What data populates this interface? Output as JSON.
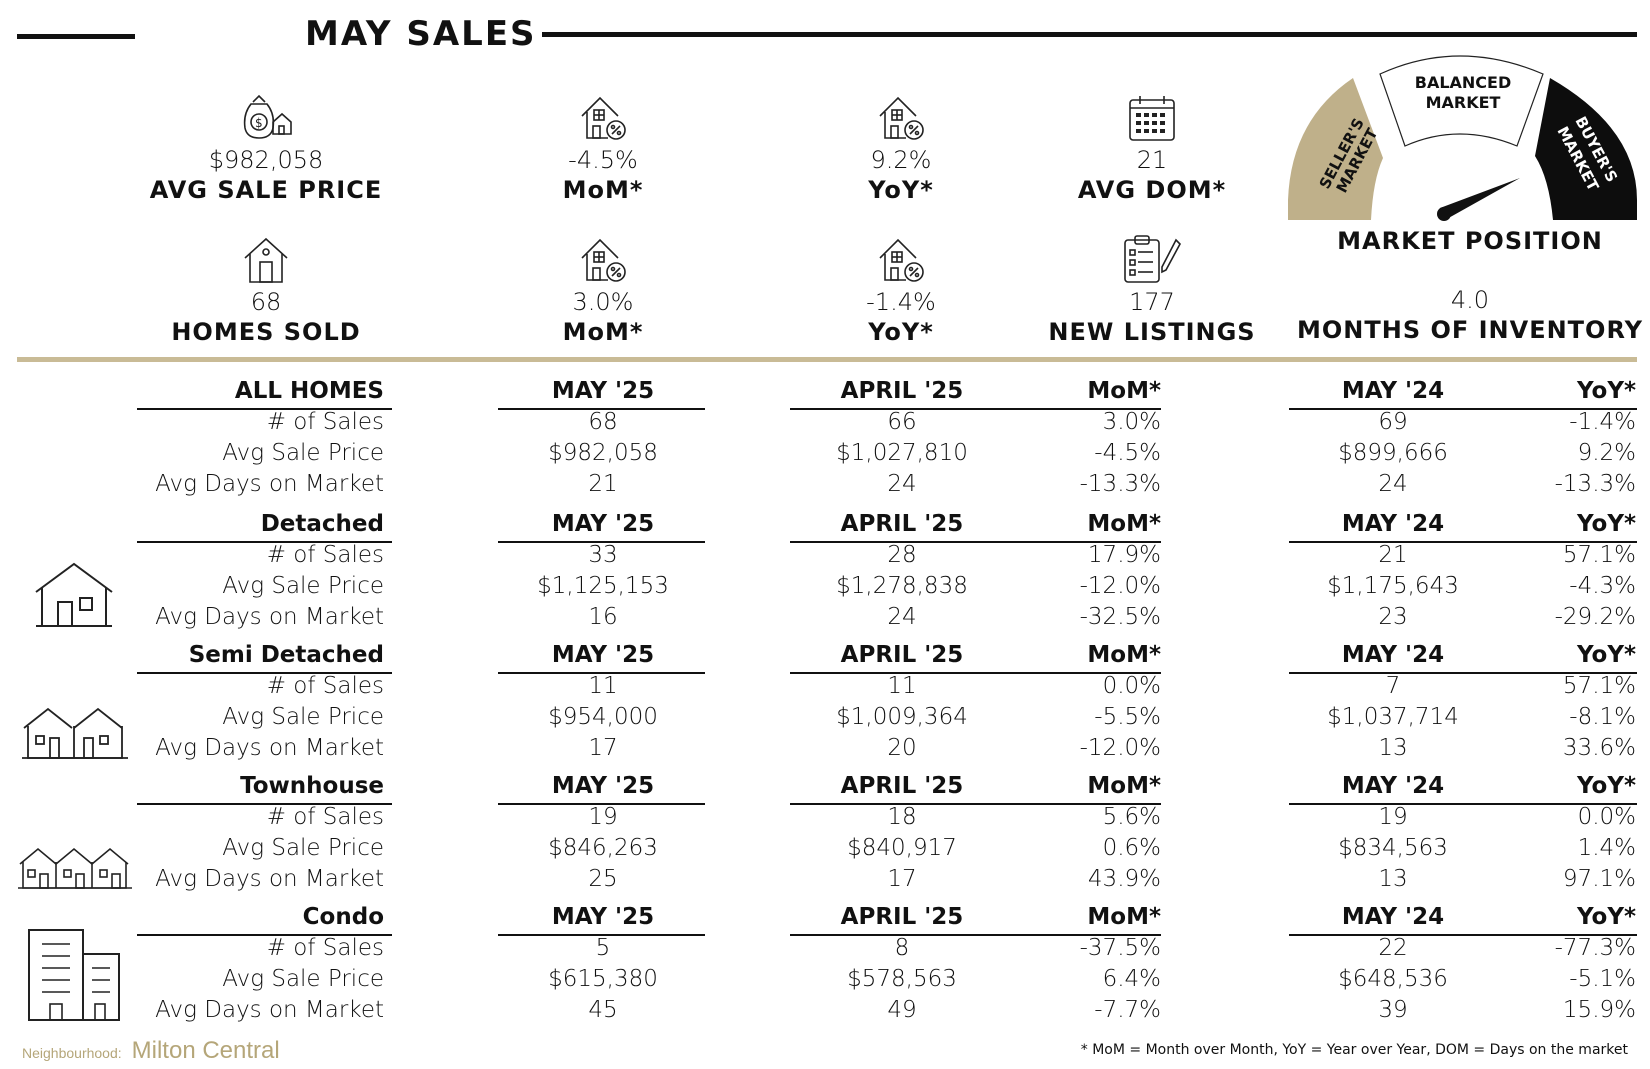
{
  "title": "MAY SALES",
  "stats_top": [
    {
      "icon": "money-bag-house-icon",
      "value": "$982,058",
      "label": "AVG SALE PRICE"
    },
    {
      "icon": "house-percent-icon",
      "value": "-4.5%",
      "label": "MoM*"
    },
    {
      "icon": "house-percent-icon",
      "value": "9.2%",
      "label": "YoY*"
    },
    {
      "icon": "calendar-icon",
      "value": "21",
      "label": "AVG DOM*"
    }
  ],
  "stats_bottom": [
    {
      "icon": "house-icon",
      "value": "68",
      "label": "HOMES SOLD"
    },
    {
      "icon": "house-percent-icon",
      "value": "3.0%",
      "label": "MoM*"
    },
    {
      "icon": "house-percent-icon",
      "value": "-1.4%",
      "label": "YoY*"
    },
    {
      "icon": "clipboard-pencil-icon",
      "value": "177",
      "label": "NEW LISTINGS"
    }
  ],
  "gauge": {
    "seller": "SELLER'S\nMARKET",
    "balanced_1": "BALANCED",
    "balanced_2": "MARKET",
    "buyer": "BUYER'S\nMARKET",
    "label": "MARKET POSITION",
    "value": "4.0",
    "value_label": "MONTHS OF INVENTORY",
    "gold": "#bfb08a",
    "dark": "#0d0d0d"
  },
  "columns": {
    "current": "MAY '25",
    "prev": "APRIL '25",
    "mom": "MoM*",
    "last_year": "MAY '24",
    "yoy": "YoY*"
  },
  "sections": [
    {
      "name": "ALL HOMES",
      "rows": [
        {
          "label": "# of Sales",
          "cur": "68",
          "prev": "66",
          "mom": "3.0%",
          "ly": "69",
          "yoy": "-1.4%"
        },
        {
          "label": "Avg Sale Price",
          "cur": "$982,058",
          "prev": "$1,027,810",
          "mom": "-4.5%",
          "ly": "$899,666",
          "yoy": "9.2%"
        },
        {
          "label": "Avg Days on Market",
          "cur": "21",
          "prev": "24",
          "mom": "-13.3%",
          "ly": "24",
          "yoy": "-13.3%"
        }
      ]
    },
    {
      "name": "Detached",
      "rows": [
        {
          "label": "# of Sales",
          "cur": "33",
          "prev": "28",
          "mom": "17.9%",
          "ly": "21",
          "yoy": "57.1%"
        },
        {
          "label": "Avg Sale Price",
          "cur": "$1,125,153",
          "prev": "$1,278,838",
          "mom": "-12.0%",
          "ly": "$1,175,643",
          "yoy": "-4.3%"
        },
        {
          "label": "Avg Days on Market",
          "cur": "16",
          "prev": "24",
          "mom": "-32.5%",
          "ly": "23",
          "yoy": "-29.2%"
        }
      ]
    },
    {
      "name": "Semi Detached",
      "rows": [
        {
          "label": "# of Sales",
          "cur": "11",
          "prev": "11",
          "mom": "0.0%",
          "ly": "7",
          "yoy": "57.1%"
        },
        {
          "label": "Avg Sale Price",
          "cur": "$954,000",
          "prev": "$1,009,364",
          "mom": "-5.5%",
          "ly": "$1,037,714",
          "yoy": "-8.1%"
        },
        {
          "label": "Avg Days on Market",
          "cur": "17",
          "prev": "20",
          "mom": "-12.0%",
          "ly": "13",
          "yoy": "33.6%"
        }
      ]
    },
    {
      "name": "Townhouse",
      "rows": [
        {
          "label": "# of Sales",
          "cur": "19",
          "prev": "18",
          "mom": "5.6%",
          "ly": "19",
          "yoy": "0.0%"
        },
        {
          "label": "Avg Sale Price",
          "cur": "$846,263",
          "prev": "$840,917",
          "mom": "0.6%",
          "ly": "$834,563",
          "yoy": "1.4%"
        },
        {
          "label": "Avg Days on Market",
          "cur": "25",
          "prev": "17",
          "mom": "43.9%",
          "ly": "13",
          "yoy": "97.1%"
        }
      ]
    },
    {
      "name": "Condo",
      "rows": [
        {
          "label": "# of Sales",
          "cur": "5",
          "prev": "8",
          "mom": "-37.5%",
          "ly": "22",
          "yoy": "-77.3%"
        },
        {
          "label": "Avg Sale Price",
          "cur": "$615,380",
          "prev": "$578,563",
          "mom": "6.4%",
          "ly": "$648,536",
          "yoy": "-5.1%"
        },
        {
          "label": "Avg Days on Market",
          "cur": "45",
          "prev": "49",
          "mom": "-7.7%",
          "ly": "39",
          "yoy": "15.9%"
        }
      ]
    }
  ],
  "footer": {
    "neighbourhood_label": "Neighbourhood:",
    "neighbourhood": "Milton Central",
    "note": "* MoM = Month over Month, YoY = Year over Year, DOM = Days on the market"
  }
}
